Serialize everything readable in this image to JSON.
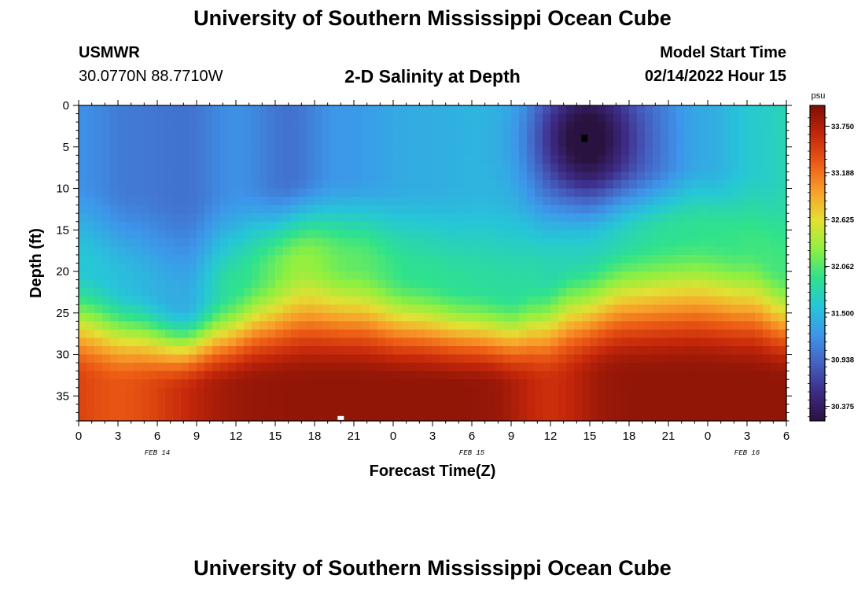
{
  "header": {
    "title": "University of Southern Mississippi Ocean Cube",
    "station": "USMWR",
    "coords": "30.0770N  88.7710W",
    "subtitle": "2-D Salinity at Depth",
    "model_start_label": "Model Start Time",
    "model_start_value": "02/14/2022 Hour 15"
  },
  "footer": {
    "title": "University of Southern Mississippi Ocean Cube"
  },
  "chart_data": {
    "type": "heatmap",
    "title": "2-D Salinity at Depth",
    "xlabel": "Forecast Time(Z)",
    "ylabel": "Depth (ft)",
    "x_tick_labels": [
      "0",
      "3",
      "6",
      "9",
      "12",
      "15",
      "18",
      "21",
      "0",
      "3",
      "6",
      "9",
      "12",
      "15",
      "18",
      "21",
      "0",
      "3",
      "6"
    ],
    "x_range_hours": [
      0,
      54
    ],
    "date_labels": [
      {
        "text": "FEB 14",
        "hour": 6
      },
      {
        "text": "FEB 15",
        "hour": 30
      },
      {
        "text": "FEB 16",
        "hour": 51
      }
    ],
    "y_ticks": [
      0,
      5,
      10,
      15,
      20,
      25,
      30,
      35
    ],
    "y_range": [
      0,
      38
    ],
    "y_inverted": true,
    "colorbar": {
      "unit": "psu",
      "ticks": [
        "33.750",
        "33.188",
        "32.625",
        "32.062",
        "31.500",
        "30.938",
        "30.375"
      ],
      "range": [
        30.2,
        34.0
      ],
      "colors": [
        "#2a1240",
        "#3d2b86",
        "#4561c2",
        "#3d96ea",
        "#26c6d8",
        "#2fe28c",
        "#8ff040",
        "#e4e033",
        "#f8a02a",
        "#ec5a14",
        "#c4260a",
        "#7c0f05"
      ]
    },
    "salinity_min_marker": {
      "hour": 38.6,
      "depth": 4
    },
    "salinity_max_marker": {
      "hour": 20,
      "depth": 37.7
    }
  }
}
